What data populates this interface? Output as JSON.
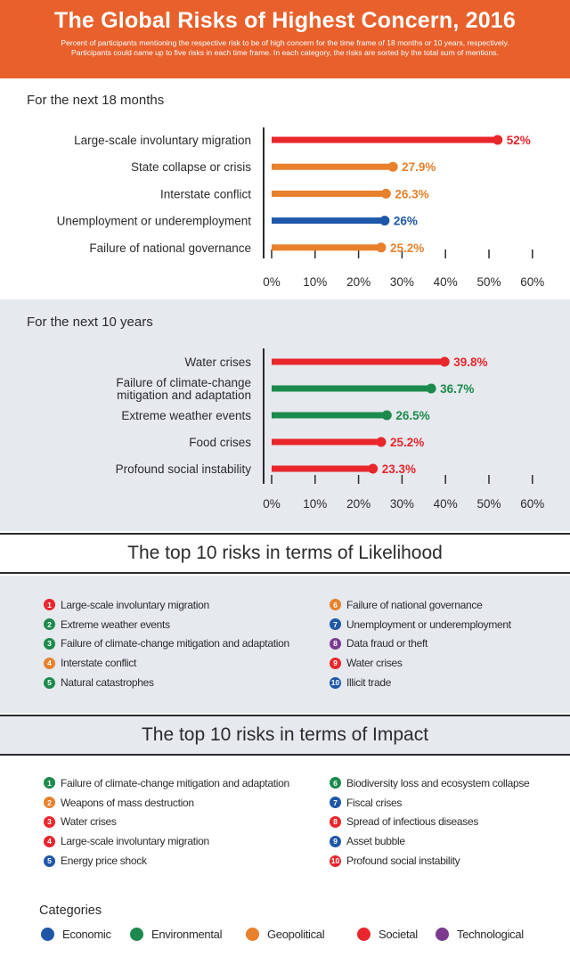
{
  "colors": {
    "economic": "#1f57a8",
    "environmental": "#1b8a4c",
    "geopolitical": "#e8802c",
    "societal": "#e8262c",
    "technological": "#7a3b8f",
    "header_bg": "#e8612c"
  },
  "header": {
    "title": "The Global Risks of Highest Concern, 2016",
    "subtitle_line1": "Percent of participants mentioning the respective risk to be of high concern for the time frame of 18 months or 10 years, respectively.",
    "subtitle_line2": "Participants could name up to five risks in each time frame. In each category, the risks are sorted by the total sum of mentions."
  },
  "chart_data": [
    {
      "type": "bar",
      "title": "For the next 18 months",
      "categories": [
        "Large-scale involuntary migration",
        "State collapse or crisis",
        "Interstate conflict",
        "Unemployment or underemployment",
        "Failure of national governance"
      ],
      "values": [
        52,
        27.9,
        26.3,
        26,
        25.2
      ],
      "value_labels": [
        "52%",
        "27.9%",
        "26.3%",
        "26%",
        "25.2%"
      ],
      "series_category": [
        "societal",
        "geopolitical",
        "geopolitical",
        "economic",
        "geopolitical"
      ],
      "xlim": [
        0,
        60
      ],
      "ticks": [
        0,
        10,
        20,
        30,
        40,
        50,
        60
      ],
      "tick_labels": [
        "0%",
        "10%",
        "20%",
        "30%",
        "40%",
        "50%",
        "60%"
      ]
    },
    {
      "type": "bar",
      "title": "For the next 10 years",
      "categories": [
        [
          "Water crises"
        ],
        [
          "Failure of climate-change",
          "mitigation and adaptation"
        ],
        [
          "Extreme weather events"
        ],
        [
          "Food crises"
        ],
        [
          "Profound social instability"
        ]
      ],
      "values": [
        39.8,
        36.7,
        26.5,
        25.2,
        23.3
      ],
      "value_labels": [
        "39.8%",
        "36.7%",
        "26.5%",
        "25.2%",
        "23.3%"
      ],
      "series_category": [
        "societal",
        "environmental",
        "environmental",
        "societal",
        "societal"
      ],
      "xlim": [
        0,
        60
      ],
      "ticks": [
        0,
        10,
        20,
        30,
        40,
        50,
        60
      ],
      "tick_labels": [
        "0%",
        "10%",
        "20%",
        "30%",
        "40%",
        "50%",
        "60%"
      ]
    }
  ],
  "likelihood": {
    "title": "The top 10 risks in terms of Likelihood",
    "items": [
      {
        "n": "1",
        "label": "Large-scale involuntary migration",
        "cat": "societal"
      },
      {
        "n": "2",
        "label": "Extreme weather events",
        "cat": "environmental"
      },
      {
        "n": "3",
        "label": "Failure of climate-change mitigation and adaptation",
        "cat": "environmental"
      },
      {
        "n": "4",
        "label": "Interstate conflict",
        "cat": "geopolitical"
      },
      {
        "n": "5",
        "label": "Natural catastrophes",
        "cat": "environmental"
      },
      {
        "n": "6",
        "label": "Failure of national governance",
        "cat": "geopolitical"
      },
      {
        "n": "7",
        "label": "Unemployment or underemployment",
        "cat": "economic"
      },
      {
        "n": "8",
        "label": "Data fraud or theft",
        "cat": "technological"
      },
      {
        "n": "9",
        "label": "Water crises",
        "cat": "societal"
      },
      {
        "n": "10",
        "label": "Illicit trade",
        "cat": "economic"
      }
    ]
  },
  "impact": {
    "title": "The top 10 risks in terms of Impact",
    "items": [
      {
        "n": "1",
        "label": "Failure of climate-change mitigation and adaptation",
        "cat": "environmental"
      },
      {
        "n": "2",
        "label": "Weapons of mass destruction",
        "cat": "geopolitical"
      },
      {
        "n": "3",
        "label": "Water crises",
        "cat": "societal"
      },
      {
        "n": "4",
        "label": "Large-scale involuntary migration",
        "cat": "societal"
      },
      {
        "n": "5",
        "label": "Energy price shock",
        "cat": "economic"
      },
      {
        "n": "6",
        "label": "Biodiversity loss and ecosystem collapse",
        "cat": "environmental"
      },
      {
        "n": "7",
        "label": "Fiscal crises",
        "cat": "economic"
      },
      {
        "n": "8",
        "label": "Spread of infectious diseases",
        "cat": "societal"
      },
      {
        "n": "9",
        "label": "Asset bubble",
        "cat": "economic"
      },
      {
        "n": "10",
        "label": "Profound social instability",
        "cat": "societal"
      }
    ]
  },
  "categories_legend": {
    "title": "Categories",
    "items": [
      {
        "label": "Economic",
        "cat": "economic"
      },
      {
        "label": "Environmental",
        "cat": "environmental"
      },
      {
        "label": "Geopolitical",
        "cat": "geopolitical"
      },
      {
        "label": "Societal",
        "cat": "societal"
      },
      {
        "label": "Technological",
        "cat": "technological"
      }
    ]
  }
}
